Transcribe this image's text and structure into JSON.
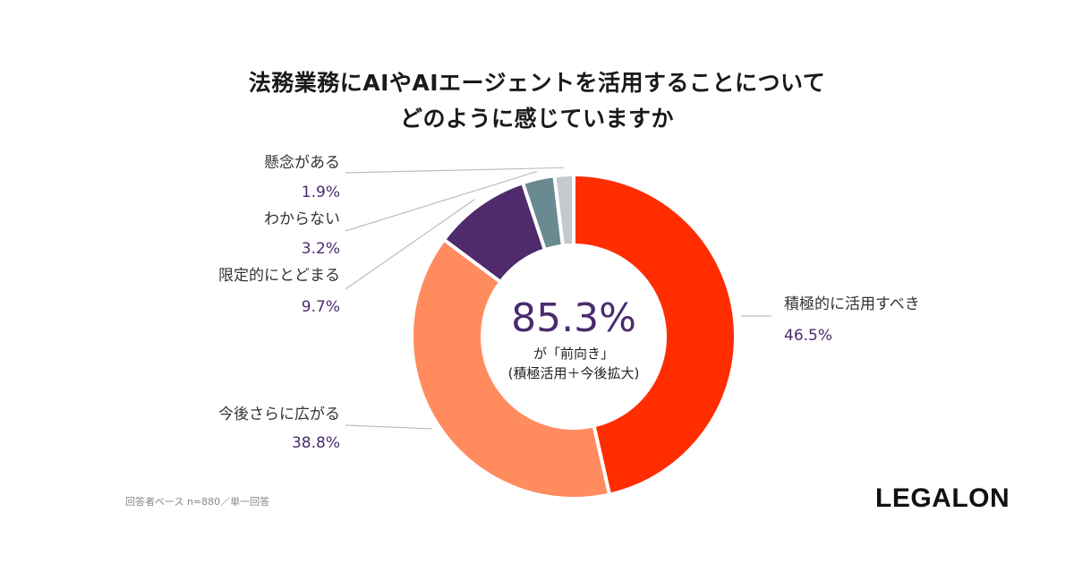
{
  "chart_data": {
    "type": "pie",
    "title_line1": "法務業務にAIやAIエージェントを活用することについて",
    "title_line2": "どのように感じていますか",
    "slices": [
      {
        "label": "積極的に活用すべき",
        "value": 46.5,
        "value_label": "46.5%",
        "color": "#ff2d00"
      },
      {
        "label": "今後さらに広がる",
        "value": 38.8,
        "value_label": "38.8%",
        "color": "#ff8b5e"
      },
      {
        "label": "限定的にとどまる",
        "value": 9.7,
        "value_label": "9.7%",
        "color": "#4f2a6c"
      },
      {
        "label": "わからない",
        "value": 3.2,
        "value_label": "3.2%",
        "color": "#6a8a92"
      },
      {
        "label": "懸念がある",
        "value": 1.9,
        "value_label": "1.9%",
        "color": "#c3c9cf"
      }
    ],
    "center": {
      "value": "85.3%",
      "line1": "が「前向き」",
      "line2": "(積極活用＋今後拡大)"
    }
  },
  "footnote": "回答者ベース n=880／単一回答",
  "logo": "LEGALON"
}
